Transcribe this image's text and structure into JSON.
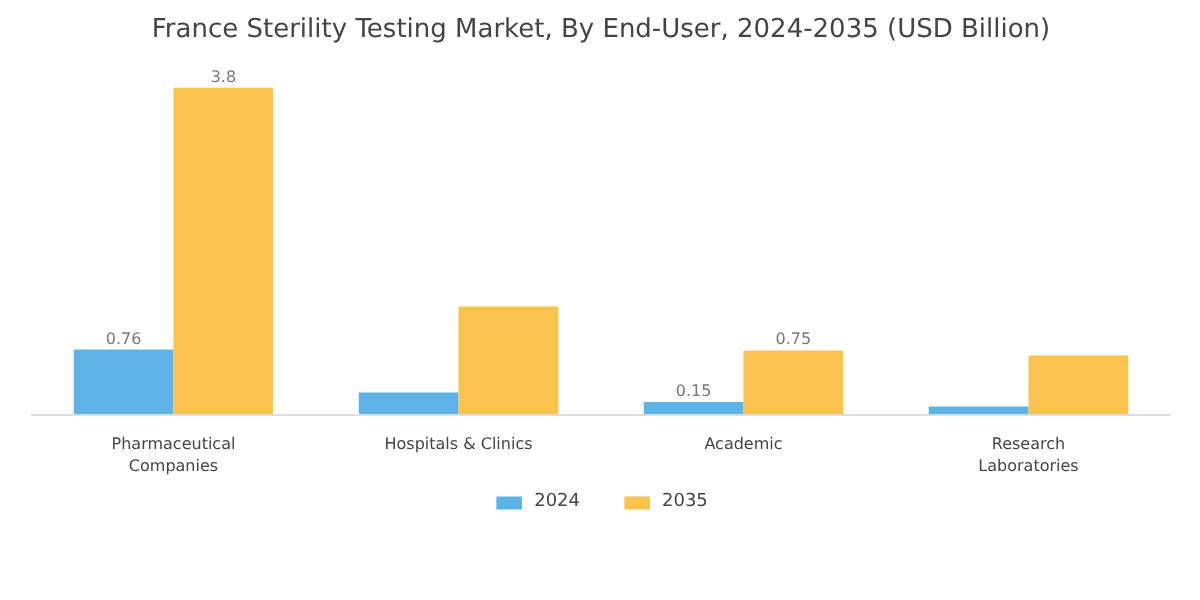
{
  "chart_data": {
    "type": "bar",
    "title": "France Sterility Testing Market, By End-User, 2024-2035 (USD Billion)",
    "categories": [
      "Pharmaceutical\nCompanies",
      "Hospitals & Clinics",
      "Academic",
      "Research\nLaboratories"
    ],
    "series": [
      {
        "name": "2024",
        "color": "#5db3e6",
        "values": [
          0.76,
          0.26,
          0.15,
          0.1
        ],
        "value_labels": [
          "0.76",
          null,
          "0.15",
          null
        ]
      },
      {
        "name": "2035",
        "color": "#f9c34e",
        "values": [
          3.8,
          1.26,
          0.75,
          0.69
        ],
        "value_labels": [
          "3.8",
          null,
          "0.75",
          null
        ]
      }
    ],
    "legend": "bottom"
  }
}
